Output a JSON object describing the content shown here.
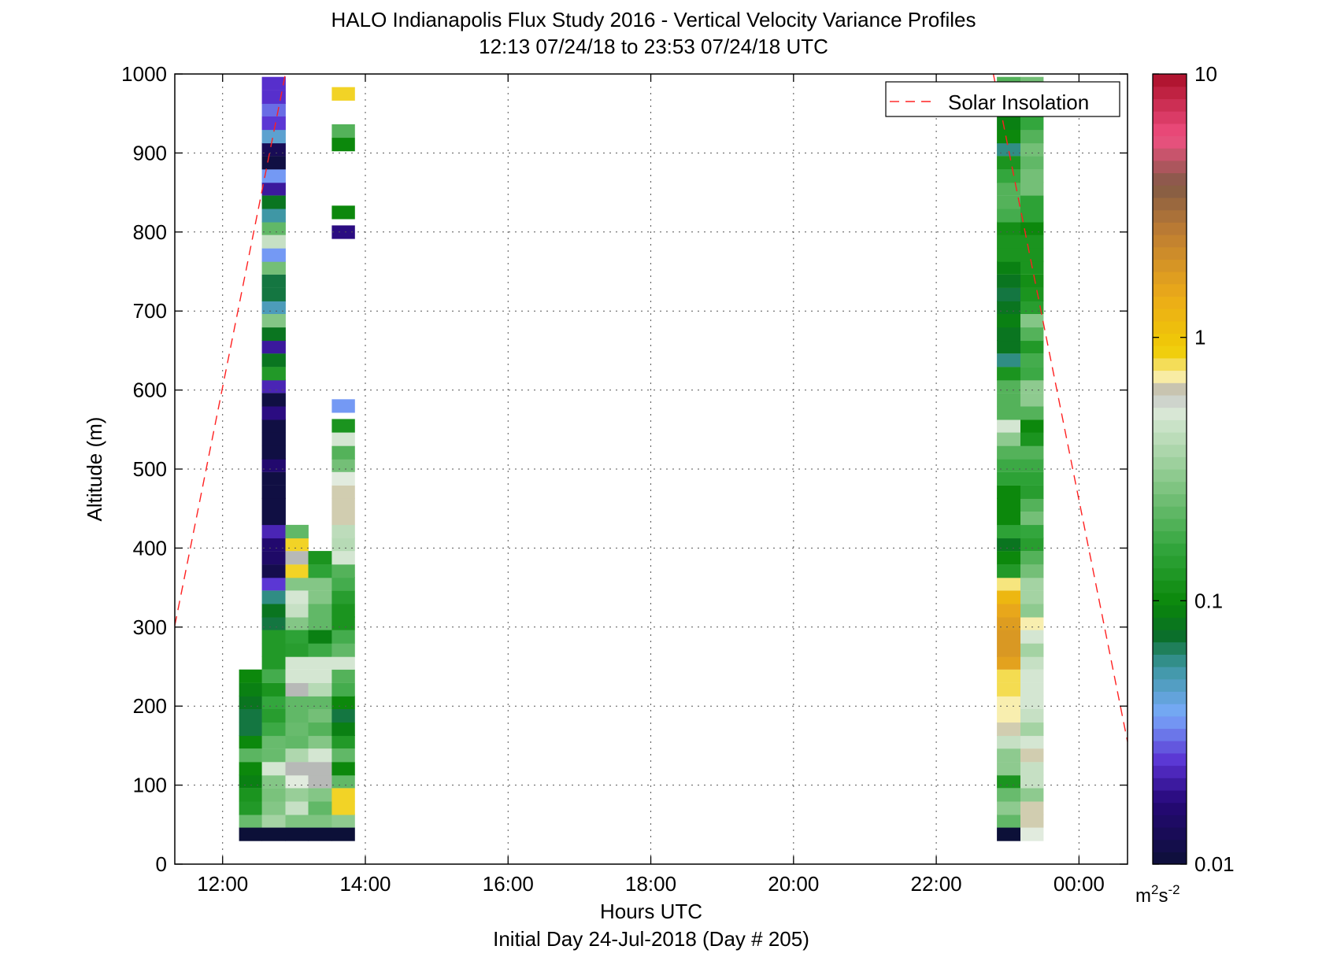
{
  "chart_data": {
    "type": "heatmap",
    "title_line1": "HALO Indianapolis Flux Study 2016 - Vertical Velocity Variance Profiles",
    "title_line2": "12:13 07/24/18 to 23:53 07/24/18  UTC",
    "xlabel": "Hours UTC",
    "xlabel2": "Initial Day 24-Jul-2018 (Day # 205)",
    "ylabel": "Altitude (m)",
    "xlim": [
      11.33,
      24.68
    ],
    "ylim": [
      0,
      1000
    ],
    "x_ticks": [
      12,
      14,
      16,
      18,
      20,
      22,
      24
    ],
    "x_tick_labels": [
      "12:00",
      "14:00",
      "16:00",
      "18:00",
      "20:00",
      "22:00",
      "00:00"
    ],
    "y_ticks": [
      0,
      100,
      200,
      300,
      400,
      500,
      600,
      700,
      800,
      900,
      1000
    ],
    "y_tick_labels": [
      "0",
      "100",
      "200",
      "300",
      "400",
      "500",
      "600",
      "700",
      "800",
      "900",
      "1000"
    ],
    "grid": true,
    "legend": {
      "entries": [
        "Solar Insolation"
      ],
      "placement": "top-right"
    },
    "colorbar": {
      "scale": "log",
      "range": [
        0.01,
        10
      ],
      "ticks": [
        0.01,
        0.1,
        1,
        10
      ],
      "tick_labels": [
        "0.01",
        "0.1",
        "1",
        "10"
      ],
      "units_base": "m",
      "units_sup1": "2",
      "units_mid": "s",
      "units_sup2": "-2"
    },
    "cell_height_m": 16.7,
    "columns": [
      {
        "x_start": 12.23,
        "x_end": 12.55,
        "cells": [
          [
            38,
            0.01
          ],
          [
            55,
            0.23
          ],
          [
            71,
            0.13
          ],
          [
            88,
            0.12
          ],
          [
            105,
            0.09
          ],
          [
            121,
            0.1
          ],
          [
            138,
            0.21
          ],
          [
            155,
            0.1
          ],
          [
            171,
            0.07
          ],
          [
            188,
            0.07
          ],
          [
            205,
            0.08
          ],
          [
            221,
            0.09
          ],
          [
            238,
            0.1
          ]
        ]
      },
      {
        "x_start": 12.55,
        "x_end": 12.88,
        "cells": [
          [
            38,
            0.01
          ],
          [
            55,
            0.35
          ],
          [
            71,
            0.28
          ],
          [
            88,
            0.26
          ],
          [
            105,
            0.28
          ],
          [
            121,
            0.5
          ],
          [
            138,
            0.23
          ],
          [
            155,
            0.23
          ],
          [
            171,
            0.17
          ],
          [
            188,
            0.14
          ],
          [
            205,
            0.16
          ],
          [
            221,
            0.12
          ],
          [
            238,
            0.18
          ],
          [
            255,
            0.13
          ],
          [
            271,
            0.13
          ],
          [
            288,
            0.13
          ],
          [
            305,
            0.07
          ],
          [
            321,
            0.08
          ],
          [
            338,
            0.06
          ],
          [
            355,
            0.025
          ],
          [
            371,
            0.012
          ],
          [
            388,
            0.015
          ],
          [
            405,
            0.016
          ],
          [
            421,
            0.022
          ],
          [
            438,
            0.011
          ],
          [
            455,
            0.011
          ],
          [
            471,
            0.011
          ],
          [
            488,
            0.011
          ],
          [
            505,
            0.016
          ],
          [
            521,
            0.011
          ],
          [
            538,
            0.011
          ],
          [
            555,
            0.011
          ],
          [
            571,
            0.018
          ],
          [
            588,
            0.011
          ],
          [
            605,
            0.022
          ],
          [
            621,
            0.13
          ],
          [
            638,
            0.08
          ],
          [
            655,
            0.02
          ],
          [
            671,
            0.08
          ],
          [
            688,
            0.28
          ],
          [
            705,
            0.05
          ],
          [
            721,
            0.07
          ],
          [
            738,
            0.07
          ],
          [
            755,
            0.25
          ],
          [
            771,
            0.035
          ],
          [
            788,
            0.45
          ],
          [
            805,
            0.22
          ],
          [
            821,
            0.055
          ],
          [
            838,
            0.08
          ],
          [
            855,
            0.02
          ],
          [
            871,
            0.035
          ],
          [
            888,
            0.011
          ],
          [
            905,
            0.013
          ],
          [
            921,
            0.045
          ],
          [
            938,
            0.025
          ],
          [
            955,
            0.03
          ],
          [
            971,
            0.024
          ],
          [
            988,
            0.024
          ]
        ]
      },
      {
        "x_start": 12.88,
        "x_end": 13.2,
        "cells": [
          [
            38,
            0.01
          ],
          [
            55,
            0.27
          ],
          [
            71,
            0.45
          ],
          [
            88,
            0.32
          ],
          [
            105,
            0.55
          ],
          [
            121,
            0.6
          ],
          [
            138,
            0.38
          ],
          [
            155,
            0.22
          ],
          [
            171,
            0.23
          ],
          [
            188,
            0.22
          ],
          [
            205,
            0.22
          ],
          [
            221,
            0.6
          ],
          [
            238,
            0.5
          ],
          [
            255,
            0.5
          ],
          [
            271,
            0.14
          ],
          [
            288,
            0.15
          ],
          [
            305,
            0.28
          ],
          [
            321,
            0.45
          ],
          [
            338,
            0.5
          ],
          [
            355,
            0.28
          ],
          [
            371,
            0.85
          ],
          [
            388,
            0.6
          ],
          [
            405,
            0.85
          ],
          [
            421,
            0.22
          ]
        ]
      },
      {
        "x_start": 13.2,
        "x_end": 13.53,
        "cells": [
          [
            38,
            0.01
          ],
          [
            55,
            0.27
          ],
          [
            71,
            0.22
          ],
          [
            88,
            0.28
          ],
          [
            105,
            0.6
          ],
          [
            121,
            0.6
          ],
          [
            138,
            0.5
          ],
          [
            155,
            0.28
          ],
          [
            171,
            0.2
          ],
          [
            188,
            0.25
          ],
          [
            205,
            0.22
          ],
          [
            221,
            0.4
          ],
          [
            238,
            0.5
          ],
          [
            255,
            0.5
          ],
          [
            271,
            0.17
          ],
          [
            288,
            0.09
          ],
          [
            305,
            0.22
          ],
          [
            321,
            0.22
          ],
          [
            338,
            0.28
          ],
          [
            355,
            0.28
          ],
          [
            371,
            0.15
          ],
          [
            388,
            0.12
          ]
        ]
      },
      {
        "x_start": 13.53,
        "x_end": 13.85,
        "cells": [
          [
            38,
            0.01
          ],
          [
            55,
            0.3
          ],
          [
            71,
            0.85
          ],
          [
            88,
            0.85
          ],
          [
            105,
            0.22
          ],
          [
            121,
            0.1
          ],
          [
            138,
            0.22
          ],
          [
            155,
            0.13
          ],
          [
            171,
            0.09
          ],
          [
            188,
            0.07
          ],
          [
            205,
            0.1
          ],
          [
            221,
            0.18
          ],
          [
            238,
            0.2
          ],
          [
            255,
            0.5
          ],
          [
            271,
            0.22
          ],
          [
            288,
            0.18
          ],
          [
            305,
            0.12
          ],
          [
            321,
            0.12
          ],
          [
            338,
            0.14
          ],
          [
            355,
            0.18
          ],
          [
            371,
            0.2
          ],
          [
            388,
            0.5
          ],
          [
            405,
            0.4
          ],
          [
            421,
            0.42
          ],
          [
            438,
            0.65
          ],
          [
            455,
            0.65
          ],
          [
            471,
            0.65
          ],
          [
            488,
            0.55
          ],
          [
            505,
            0.25
          ],
          [
            521,
            0.2
          ],
          [
            538,
            0.5
          ],
          [
            555,
            0.12
          ],
          [
            580,
            0.035
          ],
          [
            800,
            0.018
          ],
          [
            825,
            0.1
          ],
          [
            911,
            0.1
          ],
          [
            928,
            0.2
          ],
          [
            975,
            0.85
          ]
        ]
      },
      {
        "x_start": 22.85,
        "x_end": 23.18,
        "cells": [
          [
            38,
            0.01
          ],
          [
            55,
            0.22
          ],
          [
            71,
            0.3
          ],
          [
            88,
            0.23
          ],
          [
            105,
            0.12
          ],
          [
            121,
            0.3
          ],
          [
            138,
            0.3
          ],
          [
            155,
            0.45
          ],
          [
            171,
            0.65
          ],
          [
            188,
            0.7
          ],
          [
            205,
            0.7
          ],
          [
            221,
            0.8
          ],
          [
            238,
            0.8
          ],
          [
            255,
            1.6
          ],
          [
            271,
            1.8
          ],
          [
            288,
            1.8
          ],
          [
            305,
            1.7
          ],
          [
            321,
            1.5
          ],
          [
            338,
            1.2
          ],
          [
            355,
            0.75
          ],
          [
            371,
            0.13
          ],
          [
            388,
            0.1
          ],
          [
            405,
            0.08
          ],
          [
            421,
            0.15
          ],
          [
            438,
            0.1
          ],
          [
            455,
            0.1
          ],
          [
            471,
            0.1
          ],
          [
            488,
            0.15
          ],
          [
            505,
            0.17
          ],
          [
            521,
            0.2
          ],
          [
            538,
            0.3
          ],
          [
            555,
            0.5
          ],
          [
            571,
            0.2
          ],
          [
            588,
            0.2
          ],
          [
            605,
            0.2
          ],
          [
            621,
            0.12
          ],
          [
            638,
            0.06
          ],
          [
            655,
            0.08
          ],
          [
            671,
            0.08
          ],
          [
            688,
            0.09
          ],
          [
            705,
            0.08
          ],
          [
            721,
            0.07
          ],
          [
            738,
            0.08
          ],
          [
            755,
            0.09
          ],
          [
            771,
            0.12
          ],
          [
            788,
            0.12
          ],
          [
            805,
            0.11
          ],
          [
            821,
            0.18
          ],
          [
            838,
            0.2
          ],
          [
            855,
            0.2
          ],
          [
            871,
            0.16
          ],
          [
            888,
            0.12
          ],
          [
            905,
            0.06
          ],
          [
            921,
            0.1
          ],
          [
            938,
            0.09
          ],
          [
            955,
            0.2
          ],
          [
            971,
            0.18
          ],
          [
            988,
            0.2
          ]
        ]
      },
      {
        "x_start": 23.18,
        "x_end": 23.5,
        "cells": [
          [
            38,
            0.55
          ],
          [
            55,
            0.65
          ],
          [
            71,
            0.65
          ],
          [
            88,
            0.3
          ],
          [
            105,
            0.45
          ],
          [
            121,
            0.45
          ],
          [
            138,
            0.65
          ],
          [
            155,
            0.5
          ],
          [
            171,
            0.35
          ],
          [
            188,
            0.45
          ],
          [
            205,
            0.5
          ],
          [
            221,
            0.5
          ],
          [
            238,
            0.5
          ],
          [
            255,
            0.45
          ],
          [
            271,
            0.35
          ],
          [
            288,
            0.5
          ],
          [
            305,
            0.7
          ],
          [
            321,
            0.3
          ],
          [
            338,
            0.35
          ],
          [
            355,
            0.35
          ],
          [
            371,
            0.25
          ],
          [
            388,
            0.2
          ],
          [
            405,
            0.14
          ],
          [
            421,
            0.16
          ],
          [
            438,
            0.25
          ],
          [
            455,
            0.2
          ],
          [
            471,
            0.14
          ],
          [
            488,
            0.15
          ],
          [
            505,
            0.17
          ],
          [
            521,
            0.2
          ],
          [
            538,
            0.12
          ],
          [
            555,
            0.1
          ],
          [
            571,
            0.2
          ],
          [
            588,
            0.3
          ],
          [
            605,
            0.3
          ],
          [
            621,
            0.17
          ],
          [
            638,
            0.18
          ],
          [
            655,
            0.13
          ],
          [
            671,
            0.2
          ],
          [
            688,
            0.28
          ],
          [
            705,
            0.14
          ],
          [
            721,
            0.12
          ],
          [
            738,
            0.11
          ],
          [
            755,
            0.12
          ],
          [
            771,
            0.12
          ],
          [
            788,
            0.12
          ],
          [
            805,
            0.1
          ],
          [
            821,
            0.15
          ],
          [
            838,
            0.15
          ],
          [
            855,
            0.25
          ],
          [
            871,
            0.25
          ],
          [
            888,
            0.22
          ],
          [
            905,
            0.25
          ],
          [
            921,
            0.2
          ],
          [
            938,
            0.16
          ],
          [
            955,
            0.18
          ],
          [
            971,
            0.22
          ],
          [
            988,
            0.25
          ]
        ]
      }
    ],
    "solar_insolation": {
      "line_style": "dashed",
      "color": "#ff2020",
      "segments": [
        {
          "x": [
            11.33,
            12.88
          ],
          "y": [
            302,
            1000
          ]
        },
        {
          "x": [
            22.8,
            24.68
          ],
          "y": [
            1000,
            155
          ]
        }
      ]
    }
  }
}
